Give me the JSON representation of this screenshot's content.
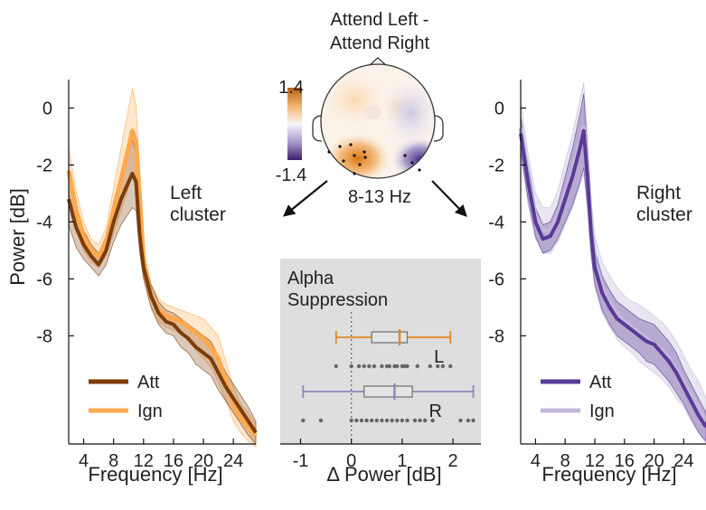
{
  "colors": {
    "att_orange": "#7a3d0a",
    "ign_orange": "#ffa94d",
    "att_purple": "#5a3a96",
    "ign_purple": "#c1b8da",
    "inset_bg": "#dedede",
    "box_orange": "#e08a24",
    "box_purple": "#8f86bd"
  },
  "chart_data": [
    {
      "type": "line",
      "id": "left",
      "xlabel": "Frequency [Hz]",
      "ylabel": "Power [dB]",
      "xlim": [
        2,
        27
      ],
      "ylim": [
        -11.8,
        1
      ],
      "xticks": [
        4,
        8,
        12,
        16,
        20,
        24
      ],
      "yticks": [
        0,
        -2,
        -4,
        -6,
        -8
      ],
      "annotation": "Left\ncluster",
      "legend": "bottom-left",
      "x": [
        2,
        3,
        4,
        5,
        6,
        7,
        8,
        9,
        10,
        10.5,
        11,
        11.5,
        12,
        13,
        14,
        15,
        16,
        17,
        18,
        19,
        20,
        21,
        22,
        23,
        24,
        25,
        26,
        27
      ],
      "series": [
        {
          "name": "Att",
          "values": [
            -3.2,
            -4.2,
            -4.8,
            -5.2,
            -5.5,
            -5.0,
            -4.0,
            -3.2,
            -2.6,
            -2.3,
            -2.6,
            -4.5,
            -5.6,
            -6.6,
            -7.2,
            -7.5,
            -7.6,
            -7.9,
            -8.1,
            -8.4,
            -8.6,
            -8.8,
            -9.3,
            -9.8,
            -10.2,
            -10.6,
            -11.0,
            -11.4
          ],
          "band": [
            0.9,
            0.7,
            0.5,
            0.4,
            0.4,
            0.5,
            0.7,
            0.9,
            1.1,
            1.2,
            1.0,
            0.6,
            0.4,
            0.4,
            0.4,
            0.4,
            0.4,
            0.5,
            0.5,
            0.6,
            0.6,
            0.6,
            0.6,
            0.5,
            0.5,
            0.5,
            0.5,
            0.4
          ]
        },
        {
          "name": "Ign",
          "values": [
            -2.2,
            -3.6,
            -4.5,
            -5.0,
            -5.2,
            -4.7,
            -3.6,
            -2.5,
            -1.4,
            -0.8,
            -1.2,
            -3.2,
            -5.4,
            -6.6,
            -7.1,
            -7.3,
            -7.4,
            -7.5,
            -7.7,
            -7.9,
            -8.1,
            -8.4,
            -8.8,
            -9.6,
            -10.4,
            -10.9,
            -11.2,
            -11.5
          ],
          "band": [
            0.8,
            0.7,
            0.5,
            0.4,
            0.4,
            0.5,
            0.8,
            1.1,
            1.4,
            1.5,
            1.3,
            0.8,
            0.5,
            0.4,
            0.4,
            0.4,
            0.4,
            0.4,
            0.5,
            0.6,
            0.7,
            0.7,
            0.8,
            0.7,
            0.6,
            0.5,
            0.5,
            0.4
          ]
        }
      ]
    },
    {
      "type": "line",
      "id": "right",
      "xlabel": "Frequency [Hz]",
      "ylabel": "",
      "xlim": [
        2,
        27
      ],
      "ylim": [
        -11.8,
        1
      ],
      "xticks": [
        4,
        8,
        12,
        16,
        20,
        24
      ],
      "yticks": [
        0,
        -2,
        -4,
        -6,
        -8
      ],
      "annotation": "Right\ncluster",
      "legend": "bottom-left",
      "x": [
        2,
        3,
        4,
        5,
        6,
        7,
        8,
        9,
        10,
        10.5,
        11,
        11.5,
        12,
        13,
        14,
        15,
        16,
        17,
        18,
        19,
        20,
        21,
        22,
        23,
        24,
        25,
        26,
        27
      ],
      "series": [
        {
          "name": "Att",
          "values": [
            -0.9,
            -2.6,
            -4.0,
            -4.6,
            -4.5,
            -4.0,
            -3.2,
            -2.4,
            -1.4,
            -0.8,
            -2.4,
            -4.4,
            -5.6,
            -6.5,
            -7.0,
            -7.4,
            -7.6,
            -7.8,
            -8.0,
            -8.2,
            -8.3,
            -8.6,
            -8.9,
            -9.3,
            -9.8,
            -10.3,
            -10.8,
            -11.2
          ],
          "band": [
            0.6,
            0.6,
            0.5,
            0.5,
            0.5,
            0.6,
            0.8,
            1.0,
            1.2,
            1.3,
            1.0,
            0.7,
            0.6,
            0.6,
            0.6,
            0.6,
            0.6,
            0.6,
            0.6,
            0.7,
            0.7,
            0.7,
            0.7,
            0.7,
            0.6,
            0.6,
            0.6,
            0.5
          ]
        },
        {
          "name": "Ign",
          "values": [
            -0.7,
            -2.5,
            -3.8,
            -4.3,
            -4.3,
            -3.8,
            -3.0,
            -2.2,
            -1.2,
            -0.7,
            -2.2,
            -4.2,
            -5.4,
            -6.3,
            -6.8,
            -7.2,
            -7.5,
            -7.7,
            -7.9,
            -8.1,
            -8.3,
            -8.5,
            -8.8,
            -9.2,
            -9.6,
            -10.1,
            -10.5,
            -11.0
          ],
          "band": [
            0.9,
            0.9,
            0.8,
            0.8,
            0.8,
            0.9,
            1.1,
            1.3,
            1.5,
            1.6,
            1.3,
            1.0,
            0.9,
            0.9,
            0.9,
            0.9,
            0.9,
            0.9,
            1.0,
            1.0,
            1.0,
            1.0,
            1.0,
            1.0,
            0.9,
            0.9,
            0.9,
            0.8
          ]
        }
      ]
    },
    {
      "type": "box",
      "id": "alpha",
      "title": "Alpha\nSuppression",
      "xlabel": "Δ Power [dB]",
      "xlim": [
        -1.4,
        2.55
      ],
      "xticks": [
        -1,
        0,
        1,
        2
      ],
      "boxes": [
        {
          "name": "L",
          "min": -0.3,
          "q1": 0.4,
          "median": 0.95,
          "q3": 1.1,
          "max": 1.95,
          "points": [
            -0.3,
            0.0,
            0.15,
            0.25,
            0.35,
            0.45,
            0.6,
            0.7,
            0.75,
            0.85,
            0.9,
            1.0,
            1.05,
            1.1,
            1.3,
            1.55,
            1.7,
            1.8,
            1.95
          ]
        },
        {
          "name": "R",
          "min": -0.95,
          "q1": 0.25,
          "median": 0.85,
          "q3": 1.2,
          "max": 2.4,
          "points": [
            -0.95,
            -0.6,
            0.0,
            0.1,
            0.2,
            0.3,
            0.4,
            0.5,
            0.6,
            0.7,
            0.8,
            0.9,
            1.0,
            1.1,
            1.25,
            1.35,
            1.45,
            1.6,
            2.15,
            2.3,
            2.4
          ]
        }
      ]
    }
  ],
  "topomap": {
    "title": "Attend Left -\nAttend Right",
    "freq_label": "8-13 Hz",
    "colorbar_max": "1.4",
    "colorbar_min": "-1.4"
  }
}
